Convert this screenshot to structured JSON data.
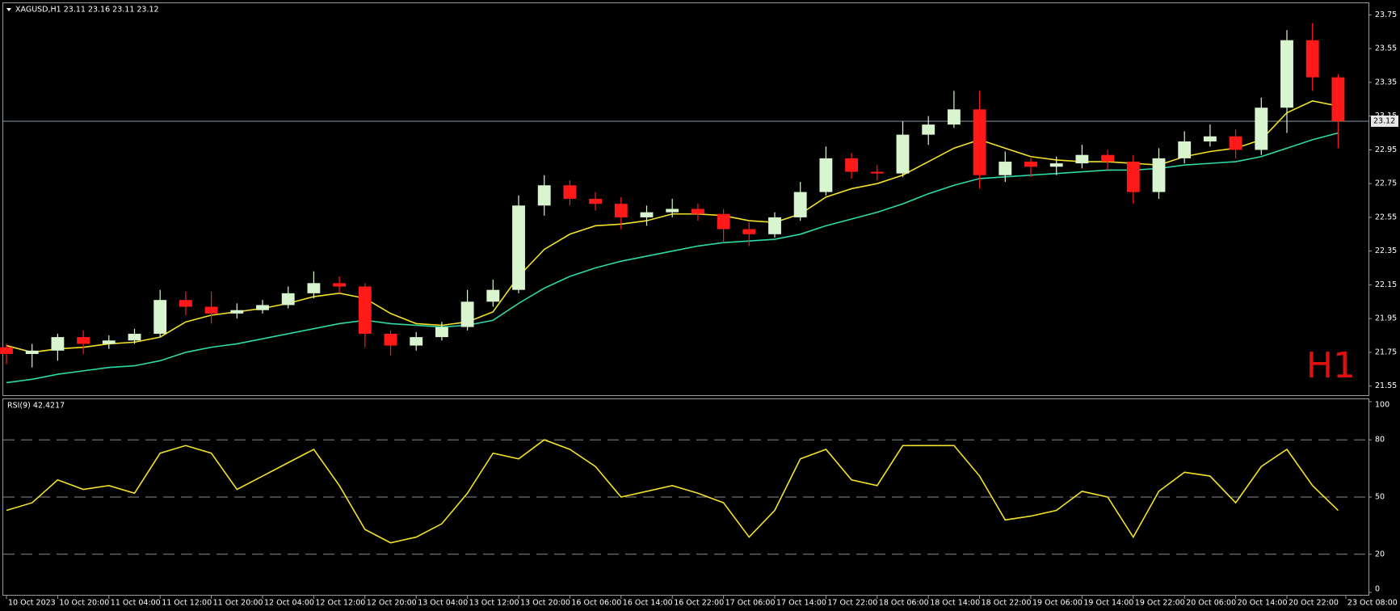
{
  "chart_data": [
    {
      "type": "candlestick",
      "title": "XAGUSD,H1  23.11 23.16 23.11 23.12",
      "timeframe_label": "H1",
      "last_price": 23.12,
      "open": [
        21.78,
        21.74,
        21.76,
        21.84,
        21.8,
        21.82,
        21.86,
        22.06,
        22.02,
        21.98,
        22.0,
        22.03,
        22.1,
        22.16,
        22.14,
        21.86,
        21.79,
        21.84,
        21.9,
        22.05,
        22.12,
        22.62,
        22.74,
        22.66,
        22.63,
        22.55,
        22.58,
        22.6,
        22.57,
        22.48,
        22.45,
        22.55,
        22.7,
        22.9,
        22.82,
        22.81,
        23.04,
        23.1,
        23.19,
        22.8,
        22.88,
        22.85,
        22.87,
        22.92,
        22.88,
        22.7,
        22.9,
        23.0,
        23.03,
        22.95,
        23.2,
        23.6,
        23.38
      ],
      "high": [
        21.8,
        21.8,
        21.86,
        21.88,
        21.85,
        21.89,
        22.12,
        22.11,
        22.11,
        22.04,
        22.06,
        22.14,
        22.23,
        22.2,
        22.16,
        21.88,
        21.87,
        21.93,
        22.12,
        22.18,
        22.68,
        22.8,
        22.77,
        22.7,
        22.67,
        22.62,
        22.66,
        22.63,
        22.6,
        22.52,
        22.58,
        22.76,
        22.97,
        22.93,
        22.86,
        23.12,
        23.15,
        23.3,
        23.3,
        22.94,
        22.9,
        22.91,
        22.98,
        22.95,
        22.92,
        22.96,
        23.06,
        23.1,
        23.07,
        23.26,
        23.66,
        23.7,
        23.4
      ],
      "low": [
        21.68,
        21.66,
        21.7,
        21.74,
        21.77,
        21.8,
        21.84,
        21.97,
        21.92,
        21.95,
        21.98,
        22.01,
        22.07,
        22.1,
        21.78,
        21.73,
        21.76,
        21.82,
        21.88,
        22.02,
        22.1,
        22.56,
        22.62,
        22.59,
        22.48,
        22.5,
        22.55,
        22.53,
        22.4,
        22.38,
        22.43,
        22.53,
        22.68,
        22.78,
        22.77,
        22.79,
        22.98,
        23.08,
        22.72,
        22.76,
        22.79,
        22.8,
        22.84,
        22.83,
        22.63,
        22.66,
        22.87,
        22.97,
        22.9,
        22.92,
        23.05,
        23.3,
        22.96
      ],
      "close": [
        21.74,
        21.76,
        21.84,
        21.8,
        21.82,
        21.86,
        22.06,
        22.02,
        21.98,
        22.0,
        22.03,
        22.1,
        22.16,
        22.14,
        21.86,
        21.79,
        21.84,
        21.9,
        22.05,
        22.12,
        22.62,
        22.74,
        22.66,
        22.63,
        22.55,
        22.58,
        22.6,
        22.57,
        22.48,
        22.45,
        22.55,
        22.7,
        22.9,
        22.82,
        22.81,
        23.04,
        23.1,
        23.19,
        22.8,
        22.88,
        22.85,
        22.87,
        22.92,
        22.88,
        22.7,
        22.9,
        23.0,
        23.03,
        22.95,
        23.2,
        23.6,
        23.38,
        23.12
      ],
      "up_color": "#d8f5d0",
      "down_color": "#ff1a1a",
      "overlays": [
        {
          "color": "#f2e22a",
          "values": [
            21.79,
            21.75,
            21.77,
            21.78,
            21.8,
            21.81,
            21.84,
            21.93,
            21.97,
            21.99,
            22.01,
            22.04,
            22.08,
            22.1,
            22.07,
            21.98,
            21.92,
            21.91,
            21.93,
            21.99,
            22.2,
            22.36,
            22.45,
            22.5,
            22.51,
            22.53,
            22.57,
            22.57,
            22.56,
            22.53,
            22.52,
            22.57,
            22.67,
            22.72,
            22.75,
            22.8,
            22.88,
            22.96,
            23.01,
            22.96,
            22.91,
            22.89,
            22.88,
            22.88,
            22.87,
            22.86,
            22.91,
            22.94,
            22.96,
            23.01,
            23.17,
            23.24,
            23.21
          ]
        },
        {
          "color": "#2fd9a8",
          "values": [
            21.57,
            21.59,
            21.62,
            21.64,
            21.66,
            21.67,
            21.7,
            21.75,
            21.78,
            21.8,
            21.83,
            21.86,
            21.89,
            21.92,
            21.94,
            21.92,
            21.91,
            21.9,
            21.91,
            21.94,
            22.04,
            22.13,
            22.2,
            22.25,
            22.29,
            22.32,
            22.35,
            22.38,
            22.4,
            22.41,
            22.42,
            22.45,
            22.5,
            22.54,
            22.58,
            22.63,
            22.69,
            22.74,
            22.78,
            22.79,
            22.8,
            22.81,
            22.82,
            22.83,
            22.83,
            22.84,
            22.86,
            22.87,
            22.88,
            22.91,
            22.96,
            23.01,
            23.05
          ]
        }
      ],
      "ylim": [
        21.51,
        23.8
      ],
      "yticks": [
        23.75,
        23.55,
        23.35,
        23.15,
        22.95,
        22.75,
        22.55,
        22.35,
        22.15,
        21.95,
        21.75,
        21.55
      ]
    },
    {
      "type": "line",
      "title": "RSI(9) 42.4217",
      "color": "#f2e22a",
      "values": [
        43,
        47,
        59,
        54,
        56,
        52,
        73,
        77,
        73,
        54,
        61,
        68,
        75,
        56,
        33,
        26,
        29,
        36,
        52,
        73,
        70,
        80,
        75,
        66,
        50,
        53,
        56,
        52,
        47,
        29,
        43,
        70,
        75,
        59,
        56,
        77,
        77,
        77,
        61,
        38,
        40,
        43,
        53,
        50,
        29,
        53,
        63,
        61,
        47,
        66,
        75,
        56,
        43
      ],
      "levels": [
        80,
        50,
        20
      ],
      "ylim": [
        0,
        100
      ],
      "yticks": [
        100,
        80,
        50,
        20,
        0
      ],
      "xticks": [
        {
          "value": 0,
          "label": "10 Oct 2023"
        },
        {
          "value": 2,
          "label": "10 Oct 20:00"
        },
        {
          "value": 4,
          "label": "11 Oct 04:00"
        },
        {
          "value": 6,
          "label": "11 Oct 12:00"
        },
        {
          "value": 8,
          "label": "11 Oct 20:00"
        },
        {
          "value": 10,
          "label": "12 Oct 04:00"
        },
        {
          "value": 12,
          "label": "12 Oct 12:00"
        },
        {
          "value": 14,
          "label": "12 Oct 20:00"
        },
        {
          "value": 16,
          "label": "13 Oct 04:00"
        },
        {
          "value": 18,
          "label": "13 Oct 12:00"
        },
        {
          "value": 20,
          "label": "13 Oct 20:00"
        },
        {
          "value": 22,
          "label": "16 Oct 06:00"
        },
        {
          "value": 24,
          "label": "16 Oct 14:00"
        },
        {
          "value": 26,
          "label": "16 Oct 22:00"
        },
        {
          "value": 28,
          "label": "17 Oct 06:00"
        },
        {
          "value": 30,
          "label": "17 Oct 14:00"
        },
        {
          "value": 32,
          "label": "17 Oct 22:00"
        },
        {
          "value": 34,
          "label": "18 Oct 06:00"
        },
        {
          "value": 36,
          "label": "18 Oct 14:00"
        },
        {
          "value": 38,
          "label": "18 Oct 22:00"
        },
        {
          "value": 40,
          "label": "19 Oct 06:00"
        },
        {
          "value": 42,
          "label": "19 Oct 14:00"
        },
        {
          "value": 44,
          "label": "19 Oct 22:00"
        },
        {
          "value": 46,
          "label": "20 Oct 06:00"
        },
        {
          "value": 48,
          "label": "20 Oct 14:00"
        },
        {
          "value": 50,
          "label": "20 Oct 22:00"
        },
        {
          "value": 52.3,
          "label": "23 Oct 08:00"
        }
      ]
    }
  ]
}
